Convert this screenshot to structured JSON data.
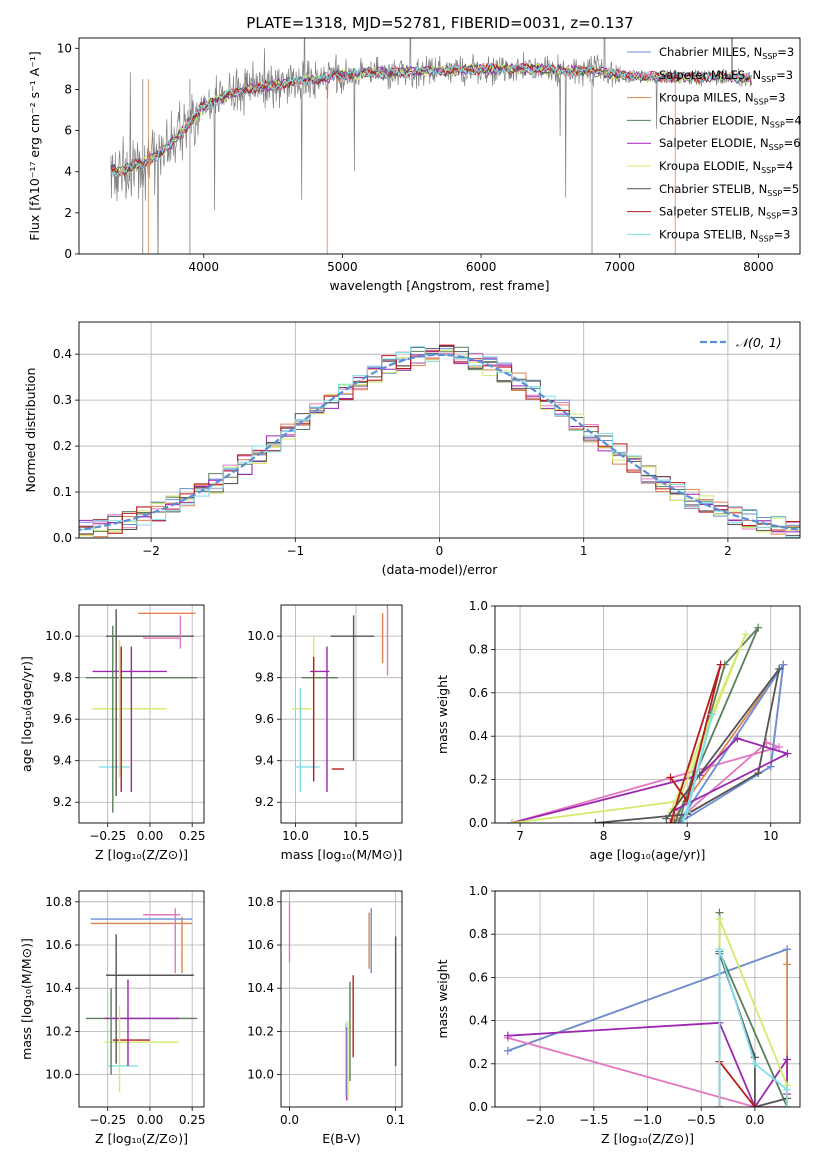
{
  "figure": {
    "title": "PLATE=1318, MJD=52781, FIBERID=0031, z=0.137"
  },
  "colors": {
    "Chabrier MILES": "#6a8fd6",
    "Salpeter MILES": "#e377c2",
    "Kroupa MILES": "#dd8452",
    "Chabrier ELODIE": "#5b7f5b",
    "Salpeter ELODIE": "#9c27b0",
    "Kroupa ELODIE": "#d4ea6b",
    "Chabrier STELIB": "#555555",
    "Salpeter STELIB": "#b71c1c",
    "Kroupa STELIB": "#80deea"
  },
  "chart_data": [
    {
      "id": "spectrum",
      "type": "line",
      "xlabel": "wavelength [Angstrom, rest frame]",
      "ylabel": "Flux [fλ10⁻¹⁷ erg cm⁻² s⁻¹ A⁻¹]",
      "xlim": [
        3100,
        8300
      ],
      "ylim": [
        0,
        10.5
      ],
      "xticks": [
        4000,
        5000,
        6000,
        7000,
        8000
      ],
      "yticks": [
        0,
        2,
        4,
        6,
        8,
        10
      ],
      "data_color": "#808080",
      "legend_position": "top-right",
      "legend": [
        {
          "label": "Chabrier MILES, N",
          "sub": "SSP",
          "suffix": "=3",
          "color": "#6a8fd6"
        },
        {
          "label": "Salpeter MILES, N",
          "sub": "SSP",
          "suffix": "=3",
          "color": "#e377c2"
        },
        {
          "label": "Kroupa MILES, N",
          "sub": "SSP",
          "suffix": "=3",
          "color": "#dd8452"
        },
        {
          "label": "Chabrier ELODIE, N",
          "sub": "SSP",
          "suffix": "=4",
          "color": "#5b7f5b"
        },
        {
          "label": "Salpeter ELODIE, N",
          "sub": "SSP",
          "suffix": "=6",
          "color": "#9c27b0"
        },
        {
          "label": "Kroupa ELODIE, N",
          "sub": "SSP",
          "suffix": "=4",
          "color": "#d4ea6b"
        },
        {
          "label": "Chabrier STELIB, N",
          "sub": "SSP",
          "suffix": "=5",
          "color": "#555555"
        },
        {
          "label": "Salpeter STELIB, N",
          "sub": "SSP",
          "suffix": "=3",
          "color": "#b71c1c"
        },
        {
          "label": "Kroupa STELIB, N",
          "sub": "SSP",
          "suffix": "=3",
          "color": "#80deea"
        }
      ],
      "continuum": {
        "x": [
          3300,
          3400,
          3500,
          3600,
          3700,
          3800,
          3900,
          4000,
          4200,
          4400,
          4600,
          4800,
          5000,
          5200,
          5400,
          5600,
          5800,
          6000,
          6200,
          6400,
          6600,
          6800,
          7000,
          7200,
          7400,
          7600,
          7800,
          7950
        ],
        "y": [
          4.2,
          4.0,
          4.3,
          4.5,
          5.0,
          5.6,
          6.4,
          7.2,
          7.8,
          8.1,
          8.3,
          8.5,
          8.7,
          8.8,
          8.8,
          8.9,
          8.9,
          9.0,
          9.0,
          9.0,
          8.9,
          8.9,
          8.7,
          8.6,
          8.6,
          8.6,
          8.6,
          8.5
        ]
      }
    },
    {
      "id": "residuals",
      "type": "line",
      "xlabel": "(data-model)/error",
      "ylabel": "Normed distribution",
      "xlim": [
        -2.5,
        2.5
      ],
      "ylim": [
        0,
        0.47
      ],
      "xticks": [
        -2,
        -1,
        0,
        1,
        2
      ],
      "yticks": [
        0.0,
        0.1,
        0.2,
        0.3,
        0.4
      ],
      "grid": true,
      "legend_position": "top-right",
      "reference": {
        "label": "𝒩(0, 1)",
        "mean": 0,
        "sigma": 1,
        "color": "#5a8ed6"
      }
    },
    {
      "id": "age-vs-Z",
      "type": "scatter",
      "xlabel": "Z [log₁₀(Z/Z⊙)]",
      "ylabel": "age  [log₁₀(age/yr)]",
      "xlim": [
        -0.42,
        0.32
      ],
      "ylim": [
        9.1,
        10.15
      ],
      "xticks": [
        -0.25,
        0.0,
        0.25
      ],
      "xticklabels": [
        "−0.25",
        "0.00",
        "0.25"
      ],
      "yticks": [
        9.2,
        9.4,
        9.6,
        9.8,
        10.0
      ],
      "grid": true,
      "points": [
        {
          "color": "#dd8452",
          "x": 0.1,
          "xerr": 0.17,
          "y": 10.11,
          "yerr": 0.0
        },
        {
          "color": "#e377c2",
          "x": 0.07,
          "xerr": 0.11,
          "y": 9.99,
          "yerr": 0.0
        },
        {
          "color": "#555555",
          "x": 0.0,
          "xerr": 0.26,
          "y": 10.0,
          "yerr": 0.0
        },
        {
          "color": "#5b7f5b",
          "x": -0.05,
          "xerr": 0.33,
          "y": 9.8,
          "yerr": 0.0
        },
        {
          "color": "#9c27b0",
          "x": -0.12,
          "xerr": 0.22,
          "y": 9.83,
          "yerr": 0.0
        },
        {
          "color": "#d4ea6b",
          "x": -0.12,
          "xerr": 0.22,
          "y": 9.65,
          "yerr": 0.0
        },
        {
          "color": "#80deea",
          "x": -0.21,
          "xerr": 0.09,
          "y": 9.37,
          "yerr": 0.0
        },
        {
          "color": "#555555",
          "x": -0.2,
          "xerr": 0.0,
          "y": 9.68,
          "yerr": 0.45
        },
        {
          "color": "#5b7f5b",
          "x": -0.22,
          "xerr": 0.0,
          "y": 9.6,
          "yerr": 0.45
        },
        {
          "color": "#d4ea6b",
          "x": -0.18,
          "xerr": 0.0,
          "y": 9.65,
          "yerr": 0.33
        },
        {
          "color": "#b71c1c",
          "x": -0.17,
          "xerr": 0.0,
          "y": 9.6,
          "yerr": 0.35
        },
        {
          "color": "#9c27b0",
          "x": -0.11,
          "xerr": 0.0,
          "y": 9.6,
          "yerr": 0.35
        },
        {
          "color": "#e377c2",
          "x": 0.18,
          "xerr": 0.0,
          "y": 10.02,
          "yerr": 0.08
        }
      ]
    },
    {
      "id": "age-vs-mass",
      "type": "scatter",
      "xlabel": "mass [log₁₀(M/M⊙)]",
      "ylabel": "",
      "xlim": [
        9.88,
        10.88
      ],
      "ylim": [
        9.1,
        10.15
      ],
      "xticks": [
        10.0,
        10.5
      ],
      "xticklabels": [
        "10.0",
        "10.5"
      ],
      "yticks": [
        9.2,
        9.4,
        9.6,
        9.8,
        10.0
      ],
      "grid": true,
      "points": [
        {
          "color": "#555555",
          "x": 10.47,
          "xerr": 0.18,
          "y": 10.0,
          "yerr": 0.0
        },
        {
          "color": "#5b7f5b",
          "x": 10.2,
          "xerr": 0.15,
          "y": 9.8,
          "yerr": 0.0
        },
        {
          "color": "#9c27b0",
          "x": 10.2,
          "xerr": 0.08,
          "y": 9.83,
          "yerr": 0.0
        },
        {
          "color": "#d4ea6b",
          "x": 10.05,
          "xerr": 0.08,
          "y": 9.65,
          "yerr": 0.0
        },
        {
          "color": "#80deea",
          "x": 10.1,
          "xerr": 0.1,
          "y": 9.37,
          "yerr": 0.0
        },
        {
          "color": "#b71c1c",
          "x": 10.35,
          "xerr": 0.05,
          "y": 9.36,
          "yerr": 0.0
        },
        {
          "color": "#555555",
          "x": 10.48,
          "xerr": 0.0,
          "y": 9.75,
          "yerr": 0.35
        },
        {
          "color": "#d4ea6b",
          "x": 10.15,
          "xerr": 0.0,
          "y": 9.72,
          "yerr": 0.28
        },
        {
          "color": "#b71c1c",
          "x": 10.15,
          "xerr": 0.0,
          "y": 9.6,
          "yerr": 0.3
        },
        {
          "color": "#9c27b0",
          "x": 10.26,
          "xerr": 0.0,
          "y": 9.6,
          "yerr": 0.35
        },
        {
          "color": "#80deea",
          "x": 10.04,
          "xerr": 0.0,
          "y": 9.5,
          "yerr": 0.25
        },
        {
          "color": "#dd8452",
          "x": 10.72,
          "xerr": 0.0,
          "y": 9.99,
          "yerr": 0.12
        },
        {
          "color": "#e377c2",
          "x": 10.76,
          "xerr": 0.0,
          "y": 9.99,
          "yerr": 0.18
        }
      ]
    },
    {
      "id": "massweight-vs-age",
      "type": "line",
      "xlabel": "age  [log₁₀(age/yr)]",
      "ylabel": "mass weight",
      "xlim": [
        6.7,
        10.35
      ],
      "ylim": [
        0,
        1.0
      ],
      "xticks": [
        7,
        8,
        9,
        10
      ],
      "yticks": [
        0.0,
        0.2,
        0.4,
        0.6,
        0.8,
        1.0
      ],
      "grid": true,
      "series": [
        {
          "color": "#dd8452",
          "x": [
            8.8,
            10.15,
            10.0,
            8.8
          ],
          "y": [
            0.0,
            0.73,
            0.26,
            0.0
          ]
        },
        {
          "color": "#e377c2",
          "x": [
            6.9,
            10.1,
            9.95,
            8.85
          ],
          "y": [
            0.0,
            0.35,
            0.37,
            0.0
          ]
        },
        {
          "color": "#6a8fd6",
          "x": [
            8.9,
            10.15,
            10.0,
            8.9
          ],
          "y": [
            0.0,
            0.73,
            0.26,
            0.0
          ]
        },
        {
          "color": "#5b7f5b",
          "x": [
            8.85,
            9.85,
            9.45,
            8.9
          ],
          "y": [
            0.0,
            0.9,
            0.73,
            0.0
          ]
        },
        {
          "color": "#9c27b0",
          "x": [
            6.9,
            9.15,
            9.6,
            10.2,
            8.85
          ],
          "y": [
            0.0,
            0.22,
            0.39,
            0.32,
            0.06
          ]
        },
        {
          "color": "#d4ea6b",
          "x": [
            6.9,
            8.9,
            9.7,
            8.8
          ],
          "y": [
            0.0,
            0.1,
            0.87,
            0.05
          ]
        },
        {
          "color": "#555555",
          "x": [
            7.9,
            9.0,
            9.85,
            10.1,
            8.75
          ],
          "y": [
            0.0,
            0.04,
            0.23,
            0.71,
            0.02
          ]
        },
        {
          "color": "#b71c1c",
          "x": [
            8.8,
            9.0,
            9.4,
            8.8
          ],
          "y": [
            0.21,
            0.1,
            0.73,
            0.0
          ]
        },
        {
          "color": "#80deea",
          "x": [
            8.95,
            9.3,
            9.0
          ],
          "y": [
            0.0,
            0.5,
            0.05
          ]
        }
      ]
    },
    {
      "id": "mass-vs-Z",
      "type": "scatter",
      "xlabel": "Z [log₁₀(Z/Z⊙)]",
      "ylabel": "mass [log₁₀(M/M⊙)]",
      "xlim": [
        -0.42,
        0.32
      ],
      "ylim": [
        9.85,
        10.85
      ],
      "xticks": [
        -0.25,
        0.0,
        0.25
      ],
      "xticklabels": [
        "−0.25",
        "0.00",
        "0.25"
      ],
      "yticks": [
        10.0,
        10.2,
        10.4,
        10.6,
        10.8
      ],
      "grid": true,
      "points": [
        {
          "color": "#6a8fd6",
          "x": -0.05,
          "xerr": 0.3,
          "y": 10.72,
          "yerr": 0.0
        },
        {
          "color": "#dd8452",
          "x": -0.05,
          "xerr": 0.3,
          "y": 10.7,
          "yerr": 0.0
        },
        {
          "color": "#e377c2",
          "x": 0.07,
          "xerr": 0.11,
          "y": 10.74,
          "yerr": 0.0
        },
        {
          "color": "#555555",
          "x": 0.0,
          "xerr": 0.26,
          "y": 10.46,
          "yerr": 0.0
        },
        {
          "color": "#5b7f5b",
          "x": -0.05,
          "xerr": 0.33,
          "y": 10.26,
          "yerr": 0.0
        },
        {
          "color": "#9c27b0",
          "x": -0.05,
          "xerr": 0.22,
          "y": 10.26,
          "yerr": 0.0
        },
        {
          "color": "#d4ea6b",
          "x": -0.05,
          "xerr": 0.22,
          "y": 10.15,
          "yerr": 0.0
        },
        {
          "color": "#b71c1c",
          "x": -0.11,
          "xerr": 0.11,
          "y": 10.16,
          "yerr": 0.0
        },
        {
          "color": "#80deea",
          "x": -0.16,
          "xerr": 0.09,
          "y": 10.04,
          "yerr": 0.0
        },
        {
          "color": "#555555",
          "x": -0.2,
          "xerr": 0.0,
          "y": 10.35,
          "yerr": 0.3
        },
        {
          "color": "#5b7f5b",
          "x": -0.23,
          "xerr": 0.0,
          "y": 10.2,
          "yerr": 0.2
        },
        {
          "color": "#d4ea6b",
          "x": -0.18,
          "xerr": 0.0,
          "y": 10.12,
          "yerr": 0.2
        },
        {
          "color": "#9c27b0",
          "x": -0.13,
          "xerr": 0.0,
          "y": 10.24,
          "yerr": 0.2
        },
        {
          "color": "#e377c2",
          "x": 0.15,
          "xerr": 0.0,
          "y": 10.62,
          "yerr": 0.15
        },
        {
          "color": "#dd8452",
          "x": 0.19,
          "xerr": 0.0,
          "y": 10.6,
          "yerr": 0.13
        }
      ]
    },
    {
      "id": "mass-vs-EBV",
      "type": "scatter",
      "xlabel": "E(B-V)",
      "ylabel": "",
      "xlim": [
        -0.008,
        0.106
      ],
      "ylim": [
        9.85,
        10.85
      ],
      "xticks": [
        0.0,
        0.1
      ],
      "xticklabels": [
        "0.0",
        "0.1"
      ],
      "yticks": [
        10.0,
        10.2,
        10.4,
        10.6,
        10.8
      ],
      "grid": true,
      "points": [
        {
          "color": "#e377c2",
          "x": 0.0,
          "xerr": 0.0,
          "y": 10.66,
          "yerr": 0.14
        },
        {
          "color": "#555555",
          "x": 0.1,
          "xerr": 0.0,
          "y": 10.34,
          "yerr": 0.3
        },
        {
          "color": "#6a8fd6",
          "x": 0.077,
          "xerr": 0.0,
          "y": 10.62,
          "yerr": 0.15
        },
        {
          "color": "#dd8452",
          "x": 0.075,
          "xerr": 0.0,
          "y": 10.62,
          "yerr": 0.13
        },
        {
          "color": "#b71c1c",
          "x": 0.06,
          "xerr": 0.0,
          "y": 10.27,
          "yerr": 0.19
        },
        {
          "color": "#5b7f5b",
          "x": 0.057,
          "xerr": 0.0,
          "y": 10.2,
          "yerr": 0.23
        },
        {
          "color": "#9c27b0",
          "x": 0.054,
          "xerr": 0.0,
          "y": 10.05,
          "yerr": 0.17
        },
        {
          "color": "#d4ea6b",
          "x": 0.055,
          "xerr": 0.0,
          "y": 10.07,
          "yerr": 0.18
        },
        {
          "color": "#80deea",
          "x": 0.053,
          "xerr": 0.0,
          "y": 10.07,
          "yerr": 0.17
        }
      ]
    },
    {
      "id": "massweight-vs-Z",
      "type": "line",
      "xlabel": "Z [log₁₀(Z/Z⊙)]",
      "ylabel": "mass weight",
      "xlim": [
        -2.42,
        0.42
      ],
      "ylim": [
        0,
        1.0
      ],
      "xticks": [
        -2.0,
        -1.5,
        -1.0,
        -0.5,
        0.0
      ],
      "xticklabels": [
        "−2.0",
        "−1.5",
        "−1.0",
        "−0.5",
        "0.0"
      ],
      "yticks": [
        0.0,
        0.2,
        0.4,
        0.6,
        0.8,
        1.0
      ],
      "grid": true,
      "series": [
        {
          "color": "#dd8452",
          "x": [
            -2.3,
            0.3,
            0.3,
            0.3
          ],
          "y": [
            0.26,
            0.73,
            0.66,
            0.0
          ]
        },
        {
          "color": "#6a8fd6",
          "x": [
            -2.3,
            0.3
          ],
          "y": [
            0.26,
            0.73
          ]
        },
        {
          "color": "#e377c2",
          "x": [
            -2.3,
            0.0,
            0.3
          ],
          "y": [
            0.32,
            0.0,
            0.0
          ]
        },
        {
          "color": "#9c27b0",
          "x": [
            -2.3,
            -0.33,
            0.0,
            0.3,
            0.3
          ],
          "y": [
            0.33,
            0.39,
            0.0,
            0.22,
            0.06
          ]
        },
        {
          "color": "#5b7f5b",
          "x": [
            -0.33,
            -0.33,
            -0.33,
            0.3
          ],
          "y": [
            0.0,
            0.9,
            0.72,
            0.0
          ]
        },
        {
          "color": "#d4ea6b",
          "x": [
            -0.33,
            -0.33,
            0.3,
            0.3
          ],
          "y": [
            0.0,
            0.87,
            0.1,
            0.0
          ]
        },
        {
          "color": "#555555",
          "x": [
            -0.33,
            -0.33,
            0.0,
            0.0,
            0.3
          ],
          "y": [
            0.0,
            0.71,
            0.23,
            0.0,
            0.04
          ]
        },
        {
          "color": "#b71c1c",
          "x": [
            -0.33,
            -0.33,
            0.0
          ],
          "y": [
            0.0,
            0.21,
            0.0
          ]
        },
        {
          "color": "#80deea",
          "x": [
            -0.33,
            -0.33,
            0.0,
            0.3,
            0.3
          ],
          "y": [
            0.0,
            0.73,
            0.2,
            0.08,
            0.0
          ]
        }
      ]
    }
  ]
}
